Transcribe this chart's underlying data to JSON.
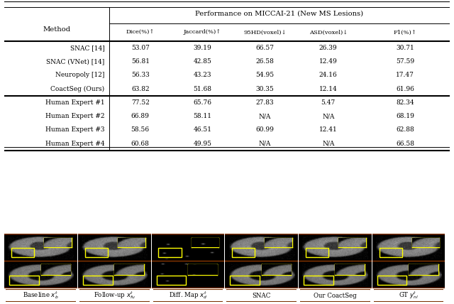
{
  "table": {
    "header_top": "Performance on MICCAI-21 (New MS Lesions)",
    "col_headers": [
      "Method",
      "Dice(%)↑",
      "Jaccard(%)↑",
      "95HD(voxel)↓",
      "ASD(voxel)↓",
      "F1(%)↑"
    ],
    "rows": [
      [
        "SNAC [14]",
        "53.07",
        "39.19",
        "66.57",
        "26.39",
        "30.71"
      ],
      [
        "SNAC (VNet) [14]",
        "56.81",
        "42.85",
        "26.58",
        "12.49",
        "57.59"
      ],
      [
        "Neuropoly [12]",
        "56.33",
        "43.23",
        "54.95",
        "24.16",
        "17.47"
      ],
      [
        "CoactSeg (Ours)",
        "63.82",
        "51.68",
        "30.35",
        "12.14",
        "61.96"
      ],
      [
        "Human Expert #1",
        "77.52",
        "65.76",
        "27.83",
        "5.47",
        "82.34"
      ],
      [
        "Human Expert #2",
        "66.89",
        "58.11",
        "N/A",
        "N/A",
        "68.19"
      ],
      [
        "Human Expert #3",
        "58.56",
        "46.51",
        "60.99",
        "12.41",
        "62.88"
      ],
      [
        "Human Expert #4",
        "60.68",
        "49.95",
        "N/A",
        "N/A",
        "66.58"
      ]
    ],
    "separator_after_row": 4
  },
  "panel_labels": [
    "Baseline $x_b^t$",
    "Follow-up $x_{fu}^t$",
    "Diff. Map $x_d^t$",
    "SNAC",
    "Our CoactSeg",
    "GT $y_{nl}^t$"
  ],
  "panel_border_color": "#7B3000",
  "label_border_color": "#7B3000",
  "bg_color": "#ffffff",
  "label_box_bg": "#ffffff"
}
